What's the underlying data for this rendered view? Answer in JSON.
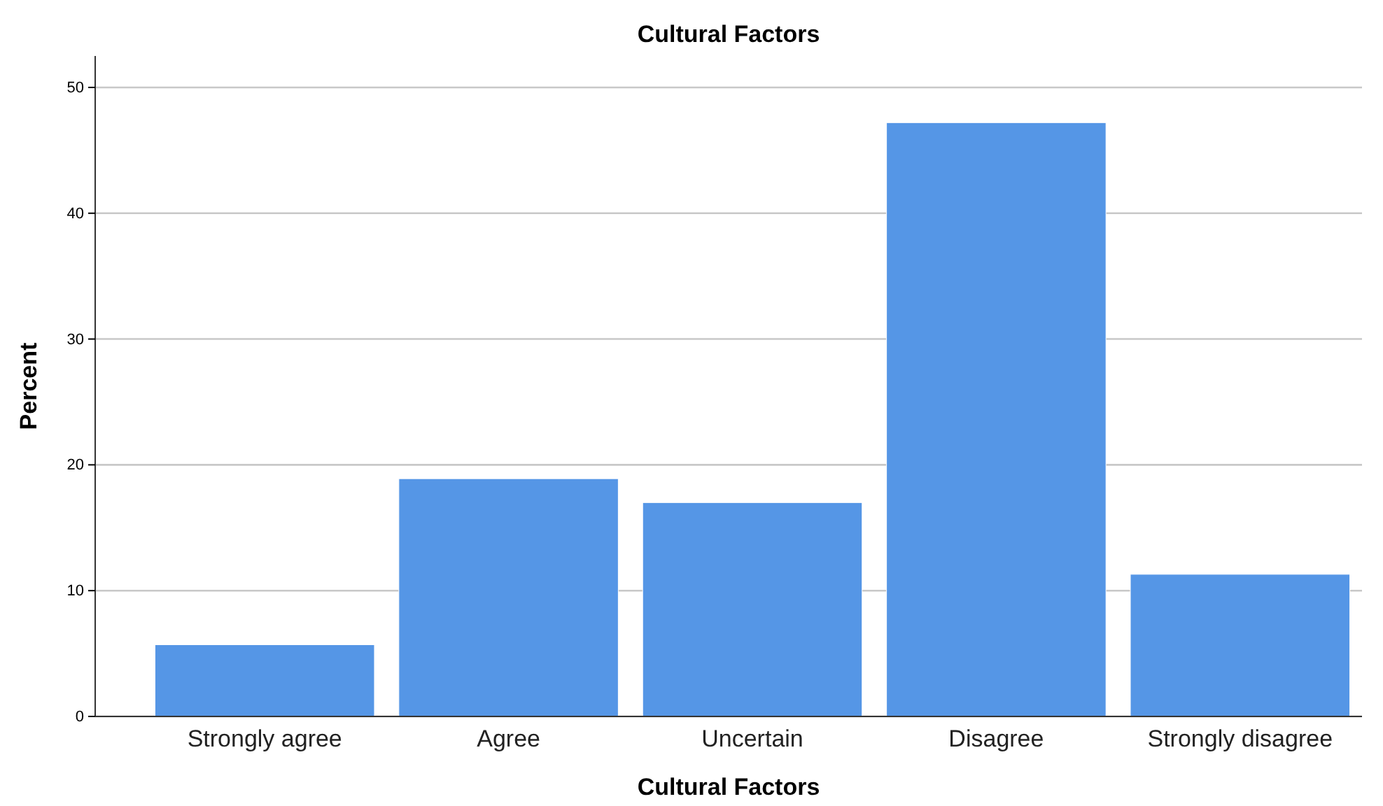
{
  "chart_data": {
    "type": "bar",
    "title": "Cultural Factors",
    "xlabel": "Cultural Factors",
    "ylabel": "Percent",
    "categories": [
      "Strongly agree",
      "Agree",
      "Uncertain",
      "Disagree",
      "Strongly disagree"
    ],
    "values": [
      5.7,
      18.9,
      17.0,
      47.2,
      11.3
    ],
    "color": "#5596e6",
    "ylim": [
      0,
      52.5
    ],
    "yticks": [
      0,
      10,
      20,
      30,
      40,
      50
    ],
    "grid": "y"
  }
}
